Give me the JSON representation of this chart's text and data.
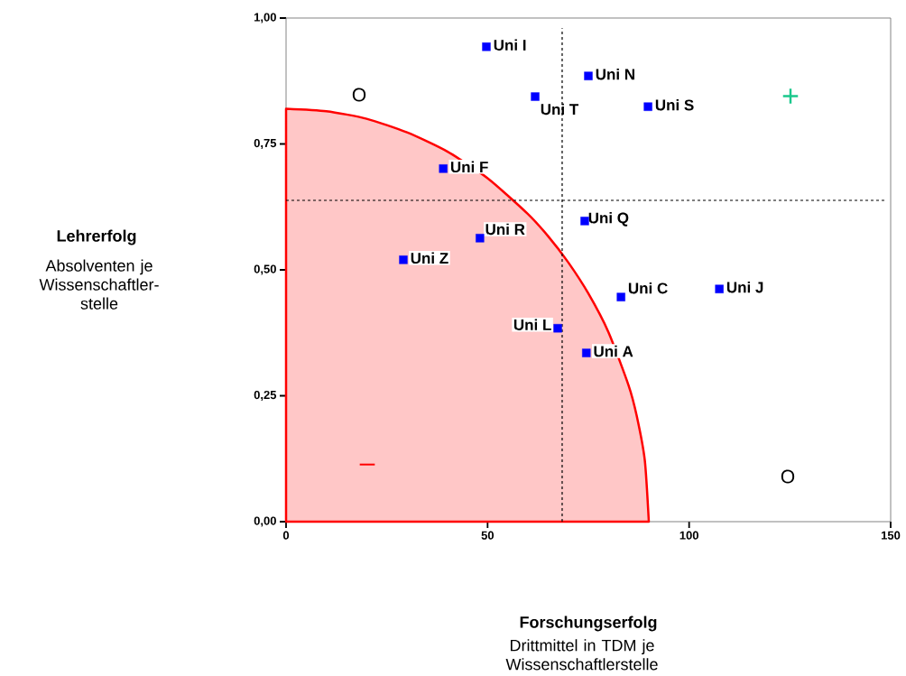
{
  "chart_data": {
    "type": "scatter",
    "xlabel": "Forschungserfolg",
    "marker": "square",
    "xlim": [
      0,
      150
    ],
    "ylim": [
      0,
      1
    ],
    "xticks": [
      0,
      50,
      100,
      150
    ],
    "yticks": [
      {
        "value": 0,
        "label": "0,00"
      },
      {
        "value": 0.25,
        "label": "0,25"
      },
      {
        "value": 0.5,
        "label": "0,50"
      },
      {
        "value": 0.75,
        "label": "0,75"
      },
      {
        "value": 1,
        "label": "1,00"
      }
    ],
    "series": [
      {
        "type": "area",
        "marker": "none",
        "color": "#ff0000",
        "x": [
          0,
          10,
          20,
          30,
          40,
          50,
          60,
          65,
          70,
          75,
          80,
          85,
          87,
          89,
          90
        ],
        "values": [
          0.82,
          0.815,
          0.8,
          0.773,
          0.735,
          0.682,
          0.611,
          0.567,
          0.515,
          0.453,
          0.376,
          0.27,
          0.21,
          0.122,
          0
        ]
      },
      {
        "name": "Uni I",
        "color": "#0000ff",
        "x": [
          49.7
        ],
        "values": [
          0.943
        ]
      },
      {
        "name": "Uni N",
        "color": "#0000ff",
        "x": [
          75.0
        ],
        "values": [
          0.885
        ]
      },
      {
        "name": "Uni T",
        "color": "#0000ff",
        "x": [
          61.8
        ],
        "values": [
          0.844
        ]
      },
      {
        "name": "Uni S",
        "color": "#0000ff",
        "x": [
          89.8
        ],
        "values": [
          0.824
        ]
      },
      {
        "name": "Uni F",
        "color": "#0000ff",
        "x": [
          39.0
        ],
        "values": [
          0.701
        ]
      },
      {
        "name": "Uni Q",
        "color": "#0000ff",
        "x": [
          74.1
        ],
        "values": [
          0.597
        ]
      },
      {
        "name": "Uni R",
        "color": "#0000ff",
        "x": [
          48.1
        ],
        "values": [
          0.563
        ]
      },
      {
        "name": "Uni Z",
        "color": "#0000ff",
        "x": [
          29.1
        ],
        "values": [
          0.52
        ]
      },
      {
        "name": "Uni C",
        "color": "#0000ff",
        "x": [
          83.1
        ],
        "values": [
          0.446
        ]
      },
      {
        "name": "Uni J",
        "color": "#0000ff",
        "x": [
          107.5
        ],
        "values": [
          0.462
        ]
      },
      {
        "name": "Uni L",
        "color": "#0000ff",
        "x": [
          67.4
        ],
        "values": [
          0.384
        ]
      },
      {
        "name": "Uni A",
        "color": "#0000ff",
        "x": [
          74.5
        ],
        "values": [
          0.335
        ]
      }
    ],
    "ref_lines": [
      {
        "axis": "x",
        "value": 68.5,
        "line_style": "dashed",
        "color": "#000000"
      },
      {
        "axis": "y",
        "value": 0.638,
        "line_style": "dashed",
        "color": "#000000"
      }
    ],
    "annotations": [
      "O",
      "O",
      "+",
      "–",
      "Lehrerfolg",
      "Drittmittel in TDM je Wissenschaftlerstelle",
      "Absolventen je Wissenschaftler-stelle"
    ]
  }
}
